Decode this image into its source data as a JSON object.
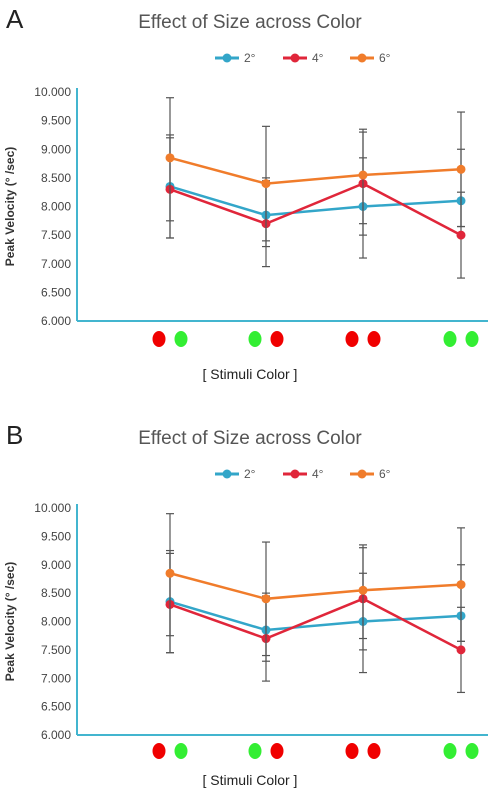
{
  "colors": {
    "s2": "#33a6c9",
    "s4": "#e0263a",
    "s6": "#f07c2b",
    "red": "#f00000",
    "green": "#33ee33",
    "axis": "#43b5cf",
    "error": "#555555"
  },
  "chart_data": [
    {
      "panel_label": "A",
      "type": "line",
      "title": "Effect of Size across Color",
      "xlabel": "[ Stimuli Color ]",
      "ylabel": "Peak Velocity (° /sec)",
      "ylim": [
        6.0,
        10.0
      ],
      "yticks": [
        "10.000",
        "9.500",
        "9.000",
        "8.500",
        "8.000",
        "7.500",
        "7.000",
        "6.500",
        "6.000"
      ],
      "grid": false,
      "legend": "top",
      "categories": [
        [
          "red",
          "green"
        ],
        [
          "green",
          "red"
        ],
        [
          "red",
          "red"
        ],
        [
          "green",
          "green"
        ]
      ],
      "series": [
        {
          "name": "2°",
          "color_key": "s2",
          "values": [
            8.35,
            7.85,
            8.0,
            8.1
          ],
          "err_lo": [
            7.45,
            7.4,
            7.5,
            7.65
          ],
          "err_hi": [
            9.2,
            8.5,
            8.85,
            9.0
          ]
        },
        {
          "name": "4°",
          "color_key": "s4",
          "values": [
            8.3,
            7.7,
            8.4,
            7.5
          ],
          "err_lo": [
            7.75,
            6.95,
            7.1,
            6.75
          ],
          "err_hi": [
            9.25,
            8.45,
            9.35,
            8.25
          ]
        },
        {
          "name": "6°",
          "color_key": "s6",
          "values": [
            8.85,
            8.4,
            8.55,
            8.65
          ],
          "err_lo": [
            7.45,
            7.3,
            7.7,
            7.65
          ],
          "err_hi": [
            9.9,
            9.4,
            9.3,
            9.65
          ]
        }
      ]
    },
    {
      "panel_label": "B",
      "type": "line",
      "title": "Effect of Size across Color",
      "xlabel": "[ Stimuli Color ]",
      "ylabel": "Peak Velocity (° /sec)",
      "ylim": [
        6.0,
        10.0
      ],
      "yticks": [
        "10.000",
        "9.500",
        "9.000",
        "8.500",
        "8.000",
        "7.500",
        "7.000",
        "6.500",
        "6.000"
      ],
      "grid": false,
      "legend": "top",
      "categories": [
        [
          "red",
          "green"
        ],
        [
          "green",
          "red"
        ],
        [
          "red",
          "red"
        ],
        [
          "green",
          "green"
        ]
      ],
      "series": [
        {
          "name": "2°",
          "color_key": "s2",
          "values": [
            8.35,
            7.85,
            8.0,
            8.1
          ],
          "err_lo": [
            7.45,
            7.4,
            7.5,
            7.65
          ],
          "err_hi": [
            9.2,
            8.5,
            8.85,
            9.0
          ]
        },
        {
          "name": "4°",
          "color_key": "s4",
          "values": [
            8.3,
            7.7,
            8.4,
            7.5
          ],
          "err_lo": [
            7.75,
            6.95,
            7.1,
            6.75
          ],
          "err_hi": [
            9.25,
            8.45,
            9.35,
            8.25
          ]
        },
        {
          "name": "6°",
          "color_key": "s6",
          "values": [
            8.85,
            8.4,
            8.55,
            8.65
          ],
          "err_lo": [
            7.45,
            7.3,
            7.7,
            7.65
          ],
          "err_hi": [
            9.9,
            9.4,
            9.3,
            9.65
          ]
        }
      ]
    }
  ]
}
